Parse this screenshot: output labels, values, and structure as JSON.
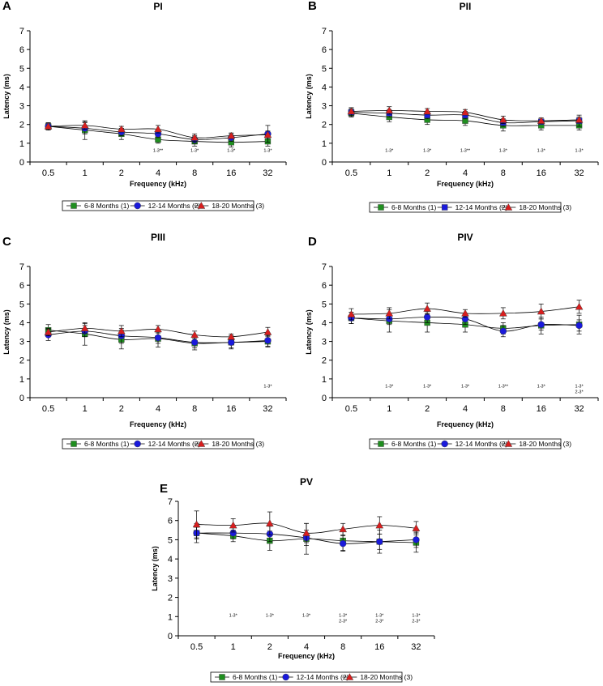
{
  "chart_data": [
    {
      "type": "line",
      "panel": "A",
      "title": "PI",
      "xlabel": "Frequency (kHz)",
      "ylabel": "Latency (ms)",
      "categories": [
        "0.5",
        "1",
        "2",
        "4",
        "8",
        "16",
        "32"
      ],
      "ylim": [
        0,
        7
      ],
      "yticks": [
        "0",
        "1",
        "2",
        "3",
        "4",
        "5",
        "6",
        "7"
      ],
      "series": [
        {
          "name": "6-8 Months (1)",
          "marker": "square",
          "color": "#1f8f1f",
          "values": [
            1.9,
            1.7,
            1.5,
            1.2,
            1.1,
            1.05,
            1.1
          ],
          "errors": [
            0.2,
            0.5,
            0.3,
            0.2,
            0.25,
            0.25,
            0.25
          ]
        },
        {
          "name": "12-14 Months (2)",
          "marker": "circle",
          "color": "#1a1adb",
          "values": [
            1.9,
            1.8,
            1.6,
            1.5,
            1.2,
            1.3,
            1.5
          ],
          "errors": [
            0.15,
            0.3,
            0.2,
            0.2,
            0.2,
            0.2,
            0.45
          ]
        },
        {
          "name": "18-20 Months (3)",
          "marker": "triangle",
          "color": "#d81e1e",
          "values": [
            1.9,
            1.95,
            1.75,
            1.75,
            1.3,
            1.4,
            1.45
          ],
          "errors": [
            0.2,
            0.2,
            0.15,
            0.2,
            0.2,
            0.15,
            0.2
          ]
        }
      ],
      "significance": [
        {
          "category": "4",
          "lines": [
            "1-3**"
          ]
        },
        {
          "category": "8",
          "lines": [
            "1-3*"
          ]
        },
        {
          "category": "16",
          "lines": [
            "1-3*"
          ]
        },
        {
          "category": "32",
          "lines": [
            "1-3*"
          ]
        }
      ]
    },
    {
      "type": "line",
      "panel": "B",
      "title": "PII",
      "xlabel": "Frequency (kHz)",
      "ylabel": "Latency (ms)",
      "categories": [
        "0.5",
        "1",
        "2",
        "4",
        "8",
        "16",
        "32"
      ],
      "ylim": [
        0,
        7
      ],
      "yticks": [
        "0",
        "1",
        "2",
        "3",
        "4",
        "5",
        "6",
        "7"
      ],
      "series": [
        {
          "name": "6-8 Months (1)",
          "marker": "square",
          "color": "#1f8f1f",
          "values": [
            2.6,
            2.4,
            2.25,
            2.2,
            1.95,
            1.95,
            1.95
          ],
          "errors": [
            0.2,
            0.25,
            0.25,
            0.25,
            0.3,
            0.25,
            0.25
          ]
        },
        {
          "name": "12-14 Months (2)",
          "marker": "square",
          "color": "#1a1adb",
          "values": [
            2.65,
            2.6,
            2.5,
            2.5,
            2.1,
            2.15,
            2.2
          ],
          "errors": [
            0.2,
            0.2,
            0.2,
            0.2,
            0.2,
            0.15,
            0.3
          ]
        },
        {
          "name": "18-20 Months (3)",
          "marker": "triangle",
          "color": "#d81e1e",
          "values": [
            2.7,
            2.75,
            2.7,
            2.65,
            2.25,
            2.2,
            2.25
          ],
          "errors": [
            0.2,
            0.2,
            0.15,
            0.15,
            0.2,
            0.15,
            0.15
          ]
        }
      ],
      "significance": [
        {
          "category": "1",
          "lines": [
            "1-3*"
          ]
        },
        {
          "category": "2",
          "lines": [
            "1-3*"
          ]
        },
        {
          "category": "4",
          "lines": [
            "1-3**"
          ]
        },
        {
          "category": "8",
          "lines": [
            "1-3*"
          ]
        },
        {
          "category": "16",
          "lines": [
            "1-3*"
          ]
        },
        {
          "category": "32",
          "lines": [
            "1-3*"
          ]
        }
      ]
    },
    {
      "type": "line",
      "panel": "C",
      "title": "PIII",
      "xlabel": "Frequency (kHz)",
      "ylabel": "Latency (ms)",
      "categories": [
        "0.5",
        "1",
        "2",
        "4",
        "8",
        "16",
        "32"
      ],
      "ylim": [
        0,
        7
      ],
      "yticks": [
        "0",
        "1",
        "2",
        "3",
        "4",
        "5",
        "6",
        "7"
      ],
      "series": [
        {
          "name": "6-8 Months (1)",
          "marker": "square",
          "color": "#1f8f1f",
          "values": [
            3.6,
            3.4,
            3.1,
            3.15,
            2.9,
            2.95,
            3.0
          ],
          "errors": [
            0.3,
            0.6,
            0.5,
            0.45,
            0.35,
            0.35,
            0.3
          ]
        },
        {
          "name": "12-14 Months (2)",
          "marker": "circle",
          "color": "#1a1adb",
          "values": [
            3.35,
            3.55,
            3.3,
            3.2,
            2.95,
            2.95,
            3.05
          ],
          "errors": [
            0.3,
            0.3,
            0.4,
            0.3,
            0.3,
            0.3,
            0.3
          ]
        },
        {
          "name": "18-20 Months (3)",
          "marker": "triangle",
          "color": "#d81e1e",
          "values": [
            3.5,
            3.7,
            3.55,
            3.65,
            3.35,
            3.25,
            3.5
          ],
          "errors": [
            0.2,
            0.25,
            0.3,
            0.2,
            0.2,
            0.15,
            0.25
          ]
        }
      ],
      "significance": [
        {
          "category": "32",
          "lines": [
            "1-3*"
          ]
        }
      ]
    },
    {
      "type": "line",
      "panel": "D",
      "title": "PIV",
      "xlabel": "Frequency (kHz)",
      "ylabel": "Latency (ms)",
      "categories": [
        "0.5",
        "1",
        "2",
        "4",
        "8",
        "16",
        "32"
      ],
      "ylim": [
        0,
        7
      ],
      "yticks": [
        "0",
        "1",
        "2",
        "3",
        "4",
        "5",
        "6",
        "7"
      ],
      "series": [
        {
          "name": "6-8 Months (1)",
          "marker": "square",
          "color": "#1f8f1f",
          "values": [
            4.25,
            4.1,
            4.0,
            3.9,
            3.7,
            3.85,
            3.9
          ],
          "errors": [
            0.3,
            0.6,
            0.5,
            0.4,
            0.3,
            0.45,
            0.5
          ]
        },
        {
          "name": "12-14 Months (2)",
          "marker": "circle",
          "color": "#1a1adb",
          "values": [
            4.25,
            4.2,
            4.3,
            4.2,
            3.55,
            3.9,
            3.85
          ],
          "errors": [
            0.3,
            0.3,
            0.3,
            0.3,
            0.3,
            0.3,
            0.3
          ]
        },
        {
          "name": "18-20 Months (3)",
          "marker": "triangle",
          "color": "#d81e1e",
          "values": [
            4.45,
            4.5,
            4.75,
            4.5,
            4.5,
            4.6,
            4.85
          ],
          "errors": [
            0.3,
            0.3,
            0.3,
            0.2,
            0.3,
            0.4,
            0.35
          ]
        }
      ],
      "significance": [
        {
          "category": "1",
          "lines": [
            "1-3*"
          ]
        },
        {
          "category": "2",
          "lines": [
            "1-3*"
          ]
        },
        {
          "category": "4",
          "lines": [
            "1-3*"
          ]
        },
        {
          "category": "8",
          "lines": [
            "1-3**"
          ]
        },
        {
          "category": "16",
          "lines": [
            "1-3*"
          ]
        },
        {
          "category": "32",
          "lines": [
            "1-3*",
            "2-3*"
          ]
        }
      ]
    },
    {
      "type": "line",
      "panel": "E",
      "title": "PV",
      "xlabel": "Frequency (kHz)",
      "ylabel": "Latency (ms)",
      "categories": [
        "0.5",
        "1",
        "2",
        "4",
        "8",
        "16",
        "32"
      ],
      "ylim": [
        0,
        7
      ],
      "yticks": [
        "0",
        "1",
        "2",
        "3",
        "4",
        "5",
        "6",
        "7"
      ],
      "series": [
        {
          "name": "6-8 Months (1)",
          "marker": "square",
          "color": "#1f8f1f",
          "values": [
            5.35,
            5.2,
            4.95,
            5.05,
            4.95,
            4.9,
            4.85
          ],
          "errors": [
            0.5,
            0.3,
            0.5,
            0.8,
            0.5,
            0.6,
            0.5
          ]
        },
        {
          "name": "12-14 Months (2)",
          "marker": "circle",
          "color": "#1a1adb",
          "values": [
            5.35,
            5.35,
            5.3,
            5.1,
            4.8,
            4.9,
            5.0
          ],
          "errors": [
            0.3,
            0.3,
            0.4,
            0.4,
            0.4,
            0.4,
            0.4
          ]
        },
        {
          "name": "18-20 Months (3)",
          "marker": "triangle",
          "color": "#d81e1e",
          "values": [
            5.8,
            5.75,
            5.85,
            5.35,
            5.55,
            5.75,
            5.6
          ],
          "errors": [
            0.7,
            0.35,
            0.6,
            0.5,
            0.3,
            0.45,
            0.35
          ]
        }
      ],
      "significance": [
        {
          "category": "1",
          "lines": [
            "1-3*"
          ]
        },
        {
          "category": "2",
          "lines": [
            "1-3*"
          ]
        },
        {
          "category": "4",
          "lines": [
            "1-3*"
          ]
        },
        {
          "category": "8",
          "lines": [
            "1-3*",
            "2-3*"
          ]
        },
        {
          "category": "16",
          "lines": [
            "1-3*",
            "2-3*"
          ]
        },
        {
          "category": "32",
          "lines": [
            "1-3*",
            "2-3*"
          ]
        }
      ]
    }
  ]
}
